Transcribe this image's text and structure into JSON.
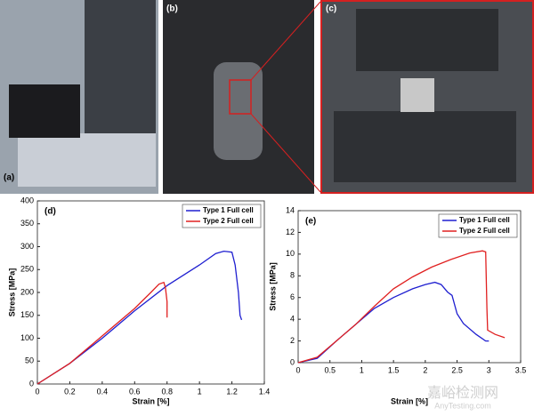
{
  "photos": [
    {
      "label": "(a)"
    },
    {
      "label": "(b)"
    },
    {
      "label": "(c)"
    }
  ],
  "watermark": [
    "嘉峪检测网",
    "AnyTesting.com"
  ],
  "chart_data": [
    {
      "type": "line",
      "panel_label": "(d)",
      "x_label": "Strain [%]",
      "y_label": "Stress [MPa]",
      "xlim": [
        0,
        1.4
      ],
      "xticks": [
        0,
        0.2,
        0.4,
        0.6,
        0.8,
        1,
        1.2,
        1.4
      ],
      "ylim": [
        0,
        400
      ],
      "yticks": [
        0,
        50,
        100,
        150,
        200,
        250,
        300,
        350,
        400
      ],
      "legend": "top-right",
      "series": [
        {
          "name": "Type 1 Full cell",
          "color": "#1f1fd0",
          "x": [
            0,
            0.2,
            0.4,
            0.6,
            0.8,
            1.0,
            1.1,
            1.15,
            1.2,
            1.22,
            1.24,
            1.25,
            1.26
          ],
          "values": [
            0,
            45,
            100,
            160,
            215,
            260,
            285,
            290,
            288,
            260,
            200,
            150,
            140
          ]
        },
        {
          "name": "Type 2 Full cell",
          "color": "#e02020",
          "x": [
            0,
            0.2,
            0.4,
            0.6,
            0.7,
            0.75,
            0.78,
            0.79,
            0.8,
            0.8
          ],
          "values": [
            0,
            45,
            105,
            165,
            200,
            218,
            222,
            210,
            180,
            145
          ]
        }
      ]
    },
    {
      "type": "line",
      "panel_label": "(e)",
      "x_label": "Strain [%]",
      "y_label": "Stress [MPa]",
      "xlim": [
        0,
        3.5
      ],
      "xticks": [
        0,
        0.5,
        1,
        1.5,
        2,
        2.5,
        3,
        3.5
      ],
      "ylim": [
        0,
        14
      ],
      "yticks": [
        0,
        2,
        4,
        6,
        8,
        10,
        12,
        14
      ],
      "legend": "top-right",
      "series": [
        {
          "name": "Type 1 Full cell",
          "color": "#1f1fd0",
          "x": [
            0,
            0.3,
            0.6,
            0.9,
            1.2,
            1.5,
            1.8,
            2.0,
            2.15,
            2.25,
            2.35,
            2.42,
            2.5,
            2.6,
            2.8,
            2.95,
            3.0
          ],
          "values": [
            0,
            0.4,
            2,
            3.5,
            5,
            6,
            6.8,
            7.2,
            7.4,
            7.2,
            6.5,
            6.2,
            4.5,
            3.6,
            2.6,
            2.0,
            2.0
          ]
        },
        {
          "name": "Type 2 Full cell",
          "color": "#e02020",
          "x": [
            0,
            0.3,
            0.6,
            0.9,
            1.2,
            1.5,
            1.8,
            2.1,
            2.4,
            2.7,
            2.9,
            2.95,
            2.97,
            2.98,
            3.1,
            3.25
          ],
          "values": [
            0,
            0.5,
            2,
            3.5,
            5.2,
            6.8,
            7.9,
            8.8,
            9.5,
            10.1,
            10.3,
            10.2,
            5,
            3,
            2.6,
            2.3
          ]
        }
      ]
    }
  ]
}
